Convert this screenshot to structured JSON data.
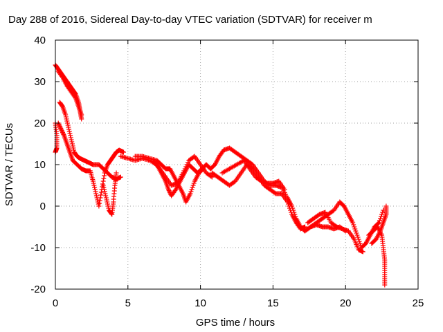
{
  "chart_data": {
    "type": "scatter",
    "title": "Day 288 of 2016, Sidereal Day-to-day VTEC variation (SDTVAR) for receiver m",
    "xlabel": "GPS time / hours",
    "ylabel": "SDTVAR / TECUs",
    "xlim": [
      0,
      25
    ],
    "ylim": [
      -20,
      40
    ],
    "xticks": [
      "0",
      "5",
      "10",
      "15",
      "20",
      "25"
    ],
    "yticks": [
      "-20",
      "-10",
      "0",
      "10",
      "20",
      "30",
      "40"
    ],
    "grid": true,
    "marker": "+",
    "series": [
      {
        "name": "SDTVAR",
        "color": "#ff0000",
        "tracks": [
          [
            [
              0.0,
              34
            ],
            [
              0.2,
              33
            ],
            [
              0.4,
              32
            ],
            [
              0.6,
              31
            ],
            [
              0.8,
              30
            ],
            [
              1.0,
              29
            ],
            [
              1.2,
              28
            ],
            [
              1.4,
              27
            ],
            [
              1.6,
              25
            ],
            [
              1.7,
              23
            ],
            [
              1.8,
              21
            ]
          ],
          [
            [
              0.2,
              32.5
            ],
            [
              0.5,
              31
            ],
            [
              0.8,
              29
            ],
            [
              1.1,
              27.5
            ],
            [
              1.4,
              26
            ],
            [
              1.6,
              24
            ],
            [
              1.8,
              22
            ]
          ],
          [
            [
              0.3,
              25
            ],
            [
              0.5,
              24
            ],
            [
              0.7,
              22
            ],
            [
              0.9,
              19
            ],
            [
              1.1,
              16
            ],
            [
              1.3,
              13
            ],
            [
              1.5,
              12
            ],
            [
              1.7,
              11.5
            ],
            [
              2.0,
              11
            ],
            [
              2.3,
              10.5
            ],
            [
              2.6,
              10
            ],
            [
              3.0,
              10
            ],
            [
              3.3,
              9
            ],
            [
              3.6,
              8
            ],
            [
              3.9,
              7
            ],
            [
              4.2,
              6.5
            ],
            [
              4.5,
              7
            ]
          ],
          [
            [
              0.2,
              20
            ],
            [
              0.4,
              18.5
            ],
            [
              0.6,
              17
            ],
            [
              0.8,
              15
            ],
            [
              1.0,
              13
            ],
            [
              1.2,
              11
            ],
            [
              1.5,
              10
            ],
            [
              1.8,
              9
            ],
            [
              2.1,
              8.5
            ],
            [
              2.4,
              8.5
            ],
            [
              2.6,
              6
            ],
            [
              2.8,
              3
            ],
            [
              3.0,
              0
            ],
            [
              3.2,
              4
            ],
            [
              3.4,
              8
            ],
            [
              3.6,
              10
            ],
            [
              3.8,
              11
            ],
            [
              4.0,
              12
            ],
            [
              4.2,
              13
            ],
            [
              4.4,
              13.5
            ],
            [
              4.7,
              13
            ]
          ],
          [
            [
              0.0,
              20
            ],
            [
              0.1,
              17
            ],
            [
              0.1,
              14
            ],
            [
              0.0,
              13
            ]
          ],
          [
            [
              3.3,
              5
            ],
            [
              3.5,
              2
            ],
            [
              3.7,
              -1
            ],
            [
              3.9,
              -2
            ],
            [
              4.0,
              1
            ],
            [
              4.1,
              5
            ],
            [
              4.2,
              8
            ]
          ],
          [
            [
              4.5,
              12
            ],
            [
              5.0,
              11.5
            ],
            [
              5.5,
              11
            ],
            [
              6.0,
              11.5
            ],
            [
              6.5,
              11
            ],
            [
              7.0,
              10
            ],
            [
              7.3,
              8
            ],
            [
              7.6,
              6
            ],
            [
              7.8,
              4
            ],
            [
              8.0,
              2.5
            ],
            [
              8.3,
              4
            ],
            [
              8.6,
              6
            ],
            [
              8.9,
              8
            ],
            [
              9.2,
              10
            ],
            [
              9.5,
              9
            ],
            [
              9.8,
              8
            ],
            [
              10.1,
              9
            ],
            [
              10.4,
              10
            ],
            [
              10.7,
              9
            ]
          ],
          [
            [
              5.5,
              12
            ],
            [
              6.0,
              12
            ],
            [
              6.5,
              11.5
            ],
            [
              7.0,
              11
            ],
            [
              7.3,
              10
            ],
            [
              7.6,
              9
            ],
            [
              7.9,
              9
            ],
            [
              8.2,
              7
            ],
            [
              8.5,
              5
            ],
            [
              8.8,
              3
            ],
            [
              9.0,
              1
            ],
            [
              9.3,
              3
            ],
            [
              9.6,
              6
            ],
            [
              9.9,
              8
            ],
            [
              10.2,
              9
            ]
          ],
          [
            [
              6.8,
              10.5
            ],
            [
              7.2,
              9
            ],
            [
              7.6,
              7
            ],
            [
              8.0,
              5
            ],
            [
              8.4,
              5.5
            ],
            [
              8.8,
              8
            ],
            [
              9.2,
              11
            ],
            [
              9.6,
              12
            ],
            [
              10.0,
              10
            ],
            [
              10.4,
              8
            ],
            [
              10.8,
              7
            ]
          ],
          [
            [
              10.7,
              9
            ],
            [
              11.0,
              10
            ],
            [
              11.3,
              12
            ],
            [
              11.6,
              13.5
            ],
            [
              12.0,
              14
            ],
            [
              12.4,
              13
            ],
            [
              12.8,
              12
            ],
            [
              13.2,
              11
            ],
            [
              13.6,
              10
            ],
            [
              14.0,
              8
            ],
            [
              14.4,
              6
            ],
            [
              14.8,
              5
            ],
            [
              15.2,
              5
            ],
            [
              15.6,
              4.5
            ],
            [
              16.0,
              2
            ],
            [
              16.3,
              0
            ],
            [
              16.6,
              -3
            ],
            [
              16.9,
              -5
            ],
            [
              17.2,
              -6
            ],
            [
              17.6,
              -5
            ]
          ],
          [
            [
              10.8,
              8
            ],
            [
              11.2,
              7
            ],
            [
              11.6,
              6
            ],
            [
              12.0,
              5
            ],
            [
              12.4,
              6
            ],
            [
              12.8,
              8
            ],
            [
              13.2,
              10
            ],
            [
              13.6,
              9
            ],
            [
              14.0,
              7
            ],
            [
              14.4,
              5
            ],
            [
              14.8,
              4
            ],
            [
              15.2,
              3
            ],
            [
              15.6,
              3
            ],
            [
              16.0,
              1
            ],
            [
              16.3,
              -2
            ],
            [
              16.6,
              -4
            ],
            [
              16.9,
              -5.5
            ],
            [
              17.2,
              -5
            ]
          ],
          [
            [
              11.5,
              8
            ],
            [
              12.0,
              9
            ],
            [
              12.5,
              10
            ],
            [
              13.0,
              11
            ],
            [
              13.4,
              9
            ],
            [
              13.8,
              7
            ],
            [
              14.2,
              6
            ],
            [
              14.6,
              5.5
            ],
            [
              15.0,
              5.5
            ],
            [
              15.4,
              6
            ],
            [
              15.8,
              4
            ]
          ],
          [
            [
              17.6,
              -5
            ],
            [
              18.0,
              -4
            ],
            [
              18.4,
              -3
            ],
            [
              18.8,
              -2
            ],
            [
              19.2,
              -1
            ],
            [
              19.6,
              1
            ],
            [
              19.9,
              0
            ],
            [
              20.2,
              -2
            ],
            [
              20.5,
              -4
            ],
            [
              20.8,
              -7
            ],
            [
              21.1,
              -10
            ],
            [
              21.4,
              -9
            ],
            [
              21.7,
              -7
            ],
            [
              22.0,
              -5
            ],
            [
              22.3,
              -4
            ],
            [
              22.6,
              -1
            ]
          ],
          [
            [
              17.4,
              -4
            ],
            [
              17.8,
              -3
            ],
            [
              18.2,
              -2
            ],
            [
              18.6,
              -1.5
            ],
            [
              19.0,
              -4
            ],
            [
              19.4,
              -5
            ],
            [
              19.8,
              -5.5
            ],
            [
              20.2,
              -6
            ],
            [
              20.6,
              -8
            ],
            [
              20.9,
              -10.5
            ],
            [
              21.2,
              -11
            ]
          ],
          [
            [
              17.2,
              -6
            ],
            [
              17.6,
              -5
            ],
            [
              18.0,
              -4.5
            ],
            [
              18.4,
              -5
            ],
            [
              18.8,
              -5
            ],
            [
              19.2,
              -5.5
            ],
            [
              19.6,
              -5
            ],
            [
              20.0,
              -6
            ]
          ],
          [
            [
              21.6,
              -7
            ],
            [
              21.9,
              -6
            ],
            [
              22.2,
              -5
            ],
            [
              22.5,
              -7
            ],
            [
              22.6,
              -10
            ],
            [
              22.7,
              -13
            ],
            [
              22.7,
              -16
            ],
            [
              22.7,
              -19
            ]
          ],
          [
            [
              21.8,
              -9
            ],
            [
              22.1,
              -8
            ],
            [
              22.4,
              -6
            ],
            [
              22.6,
              -4
            ],
            [
              22.8,
              -2
            ],
            [
              22.8,
              0
            ]
          ]
        ]
      }
    ]
  }
}
